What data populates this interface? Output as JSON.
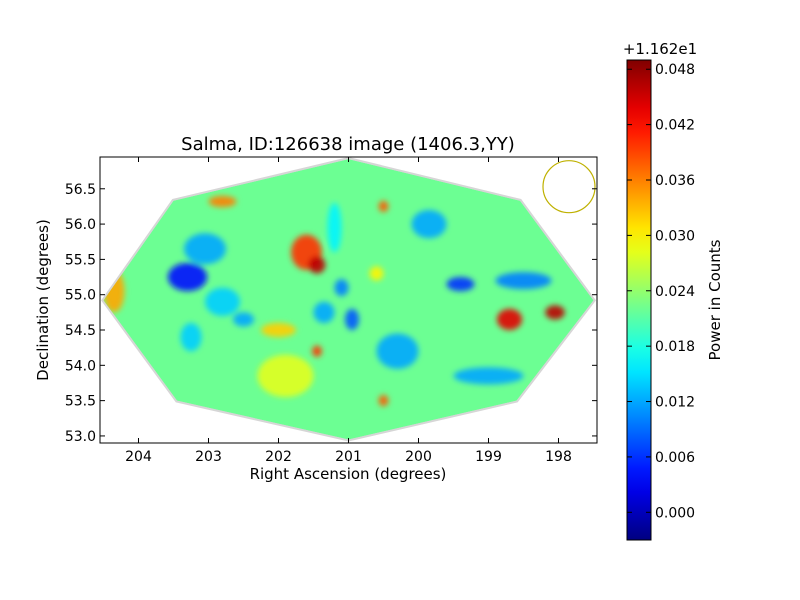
{
  "chart_data": {
    "type": "heatmap",
    "title": "Salma, ID:126638 image (1406.3,YY)",
    "xlabel": "Right Ascension (degrees)",
    "ylabel": "Declination (degrees)",
    "xlim": [
      204.55,
      197.45
    ],
    "ylim": [
      52.9,
      56.95
    ],
    "x_ticks": [
      204,
      203,
      202,
      201,
      200,
      199,
      198
    ],
    "x_tick_labels": [
      "204",
      "203",
      "202",
      "201",
      "200",
      "199",
      "198"
    ],
    "y_ticks": [
      53.0,
      53.5,
      54.0,
      54.5,
      55.0,
      55.5,
      56.0,
      56.5
    ],
    "y_tick_labels": [
      "53.0",
      "53.5",
      "54.0",
      "54.5",
      "55.0",
      "55.5",
      "56.0",
      "56.5"
    ],
    "grid": false,
    "footprint_outline": [
      [
        204.5,
        54.92
      ],
      [
        203.5,
        56.33
      ],
      [
        201.0,
        56.92
      ],
      [
        198.55,
        56.33
      ],
      [
        197.5,
        54.92
      ],
      [
        198.6,
        53.5
      ],
      [
        201.0,
        52.95
      ],
      [
        203.45,
        53.5
      ]
    ],
    "beam": {
      "ra": 197.85,
      "dec": 56.53,
      "color": "#bfb100"
    },
    "background_level": 0.022,
    "features": [
      {
        "ra": 203.3,
        "dec": 55.25,
        "value": 0.004,
        "sx": 0.28,
        "sy": 0.2
      },
      {
        "ra": 203.05,
        "dec": 55.65,
        "value": 0.012,
        "sx": 0.3,
        "sy": 0.22
      },
      {
        "ra": 202.8,
        "dec": 54.9,
        "value": 0.014,
        "sx": 0.25,
        "sy": 0.2
      },
      {
        "ra": 202.5,
        "dec": 54.65,
        "value": 0.012,
        "sx": 0.15,
        "sy": 0.1
      },
      {
        "ra": 203.25,
        "dec": 54.4,
        "value": 0.014,
        "sx": 0.15,
        "sy": 0.2
      },
      {
        "ra": 201.6,
        "dec": 55.6,
        "value": 0.04,
        "sx": 0.22,
        "sy": 0.25
      },
      {
        "ra": 201.45,
        "dec": 55.42,
        "value": 0.046,
        "sx": 0.12,
        "sy": 0.12
      },
      {
        "ra": 202.8,
        "dec": 56.32,
        "value": 0.036,
        "sx": 0.2,
        "sy": 0.08
      },
      {
        "ra": 202.0,
        "dec": 54.5,
        "value": 0.032,
        "sx": 0.25,
        "sy": 0.1
      },
      {
        "ra": 201.1,
        "dec": 55.1,
        "value": 0.01,
        "sx": 0.1,
        "sy": 0.12
      },
      {
        "ra": 201.35,
        "dec": 54.75,
        "value": 0.012,
        "sx": 0.15,
        "sy": 0.15
      },
      {
        "ra": 200.95,
        "dec": 54.65,
        "value": 0.008,
        "sx": 0.1,
        "sy": 0.15
      },
      {
        "ra": 201.2,
        "dec": 55.95,
        "value": 0.016,
        "sx": 0.1,
        "sy": 0.35
      },
      {
        "ra": 200.5,
        "dec": 56.25,
        "value": 0.038,
        "sx": 0.07,
        "sy": 0.08
      },
      {
        "ra": 201.45,
        "dec": 54.2,
        "value": 0.04,
        "sx": 0.07,
        "sy": 0.08
      },
      {
        "ra": 200.5,
        "dec": 53.5,
        "value": 0.038,
        "sx": 0.07,
        "sy": 0.08
      },
      {
        "ra": 199.4,
        "dec": 55.15,
        "value": 0.006,
        "sx": 0.2,
        "sy": 0.1
      },
      {
        "ra": 198.5,
        "dec": 55.2,
        "value": 0.01,
        "sx": 0.4,
        "sy": 0.12
      },
      {
        "ra": 198.7,
        "dec": 54.65,
        "value": 0.044,
        "sx": 0.18,
        "sy": 0.15
      },
      {
        "ra": 198.05,
        "dec": 54.75,
        "value": 0.046,
        "sx": 0.14,
        "sy": 0.1
      },
      {
        "ra": 200.3,
        "dec": 54.2,
        "value": 0.012,
        "sx": 0.3,
        "sy": 0.25
      },
      {
        "ra": 199.0,
        "dec": 53.85,
        "value": 0.012,
        "sx": 0.5,
        "sy": 0.12
      },
      {
        "ra": 204.35,
        "dec": 55.05,
        "value": 0.034,
        "sx": 0.15,
        "sy": 0.3
      },
      {
        "ra": 199.85,
        "dec": 56.0,
        "value": 0.012,
        "sx": 0.25,
        "sy": 0.2
      },
      {
        "ra": 201.9,
        "dec": 53.85,
        "value": 0.028,
        "sx": 0.4,
        "sy": 0.3
      },
      {
        "ra": 200.6,
        "dec": 55.3,
        "value": 0.03,
        "sx": 0.1,
        "sy": 0.1
      }
    ],
    "colorbar": {
      "label": "Power in Counts",
      "offset_label": "+1.162e1",
      "range": [
        -0.003,
        0.049
      ],
      "ticks": [
        0.0,
        0.006,
        0.012,
        0.018,
        0.024,
        0.03,
        0.036,
        0.042,
        0.048
      ],
      "tick_labels": [
        "0.000",
        "0.006",
        "0.012",
        "0.018",
        "0.024",
        "0.030",
        "0.036",
        "0.042",
        "0.048"
      ],
      "colormap": "jet"
    }
  }
}
